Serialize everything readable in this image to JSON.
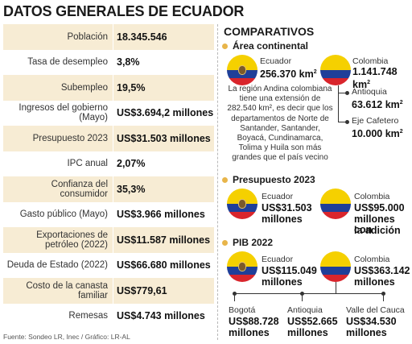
{
  "left": {
    "title": "DATOS GENERALES DE ECUADOR",
    "rows": [
      {
        "label": "Población",
        "value": "18.345.546"
      },
      {
        "label": "Tasa de desempleo",
        "value": "3,8%"
      },
      {
        "label": "Subempleo",
        "value": "19,5%"
      },
      {
        "label": "Ingresos del gobierno (Mayo)",
        "value": "US$3.694,2 millones"
      },
      {
        "label": "Presupuesto 2023",
        "value": "US$31.503 millones"
      },
      {
        "label": "IPC anual",
        "value": "2,07%"
      },
      {
        "label": "Confianza del consumidor",
        "value": "35,3%"
      },
      {
        "label": "Gasto público (Mayo)",
        "value": "US$3.966 millones"
      },
      {
        "label": "Exportaciones de petróleo (2022)",
        "value": "US$11.587 millones"
      },
      {
        "label": "Deuda de Estado (2022)",
        "value": "US$66.680 millones"
      },
      {
        "label": "Costo de la canasta familiar",
        "value": "US$779,61"
      },
      {
        "label": "Remesas",
        "value": "US$4.743 millones"
      }
    ],
    "source": "Fuente: Sondeo LR, Inec / Gráfico: LR-AL"
  },
  "right": {
    "title": "COMPARATIVOS",
    "area": {
      "heading": "Área continental",
      "ecuador_name": "Ecuador",
      "ecuador_value": "256.370 km",
      "colombia_name": "Colombia",
      "colombia_value": "1.141.748 km",
      "antioquia_name": "Antioquia",
      "antioquia_value": "63.612 km",
      "eje_name": "Eje Cafetero",
      "eje_value": "10.000 km",
      "note": "La región Andina colombiana tiene una extensión de 282.540 km², es decir que los departamentos de  Norte de Santander, Santander, Boyacá, Cundinamarca, Tolima y Huila son más grandes que el país vecino",
      "sup": "2"
    },
    "budget": {
      "heading": "Presupuesto 2023",
      "ecuador_name": "Ecuador",
      "ecuador_value": "US$31.503",
      "ecuador_unit": "millones",
      "colombia_name": "Colombia",
      "colombia_value": "US$95.000",
      "colombia_unit": "millones con",
      "colombia_unit2": "la adición"
    },
    "pib": {
      "heading": "PIB 2022",
      "ecuador_name": "Ecuador",
      "ecuador_value": "US$115.049",
      "ecuador_unit": "millones",
      "colombia_name": "Colombia",
      "colombia_value": "US$363.142",
      "colombia_unit": "millones",
      "bogota_name": "Bogotá",
      "bogota_value": "US$88.728",
      "bogota_unit": "millones",
      "antioquia_name": "Antioquia",
      "antioquia_value": "US$52.665",
      "antioquia_unit": "millones",
      "valle_name": "Valle del Cauca",
      "valle_value": "US$34.530",
      "valle_unit": "millones"
    }
  },
  "colors": {
    "shade": "#f7ecd4",
    "dot": "#e8b54a",
    "ecuador_yellow": "#f5d000",
    "ecuador_blue": "#1f3f99",
    "ecuador_red": "#d9252c"
  }
}
